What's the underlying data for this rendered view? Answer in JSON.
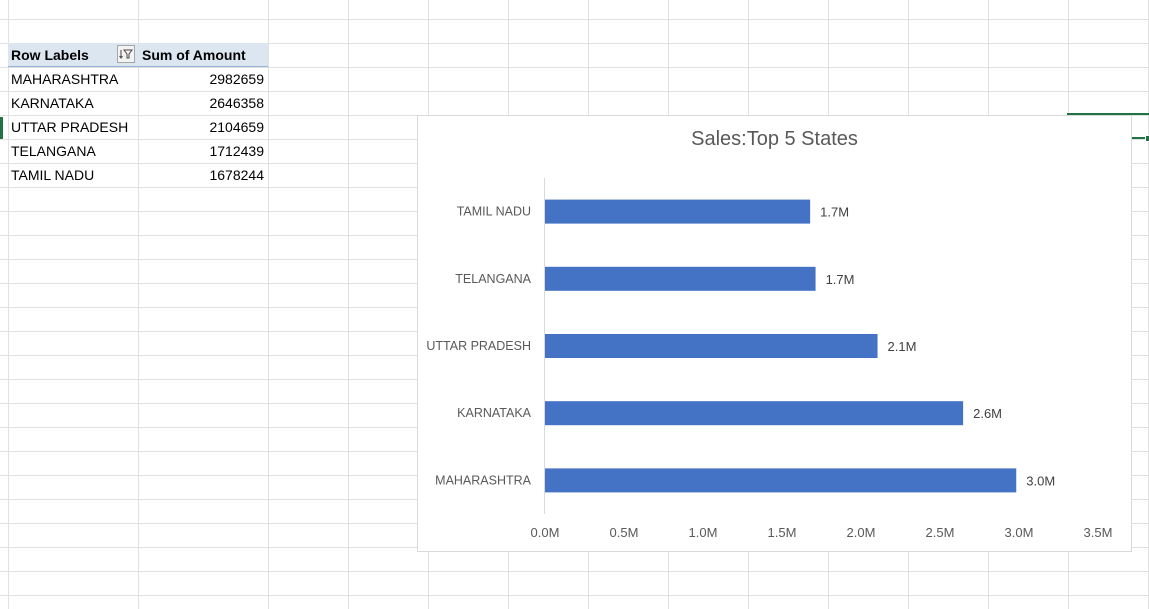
{
  "pivot": {
    "header_label": "Row Labels",
    "header_value": "Sum of Amount",
    "rows": [
      {
        "label": "MAHARASHTRA",
        "value": "2982659"
      },
      {
        "label": "KARNATAKA",
        "value": "2646358"
      },
      {
        "label": "UTTAR PRADESH",
        "value": "2104659"
      },
      {
        "label": "TELANGANA",
        "value": "1712439"
      },
      {
        "label": "TAMIL NADU",
        "value": "1678244"
      }
    ]
  },
  "chart_data": {
    "type": "bar",
    "orientation": "horizontal",
    "title": "Sales:Top 5 States",
    "categories": [
      "TAMIL NADU",
      "TELANGANA",
      "UTTAR PRADESH",
      "KARNATAKA",
      "MAHARASHTRA"
    ],
    "values": [
      1678244,
      1712439,
      2104659,
      2646358,
      2982659
    ],
    "data_labels": [
      "1.7M",
      "1.7M",
      "2.1M",
      "2.6M",
      "3.0M"
    ],
    "x_ticks": [
      "0.0M",
      "0.5M",
      "1.0M",
      "1.5M",
      "2.0M",
      "2.5M",
      "3.0M",
      "3.5M"
    ],
    "xlim": [
      0,
      3500000
    ],
    "bar_color": "#4472c4",
    "grid": false,
    "legend": "none"
  },
  "colors": {
    "gridline": "#e1e1e1",
    "pivot_header": "#dce6f1",
    "selection": "#217346"
  },
  "icons": {
    "filter": "filter-sort-icon"
  }
}
